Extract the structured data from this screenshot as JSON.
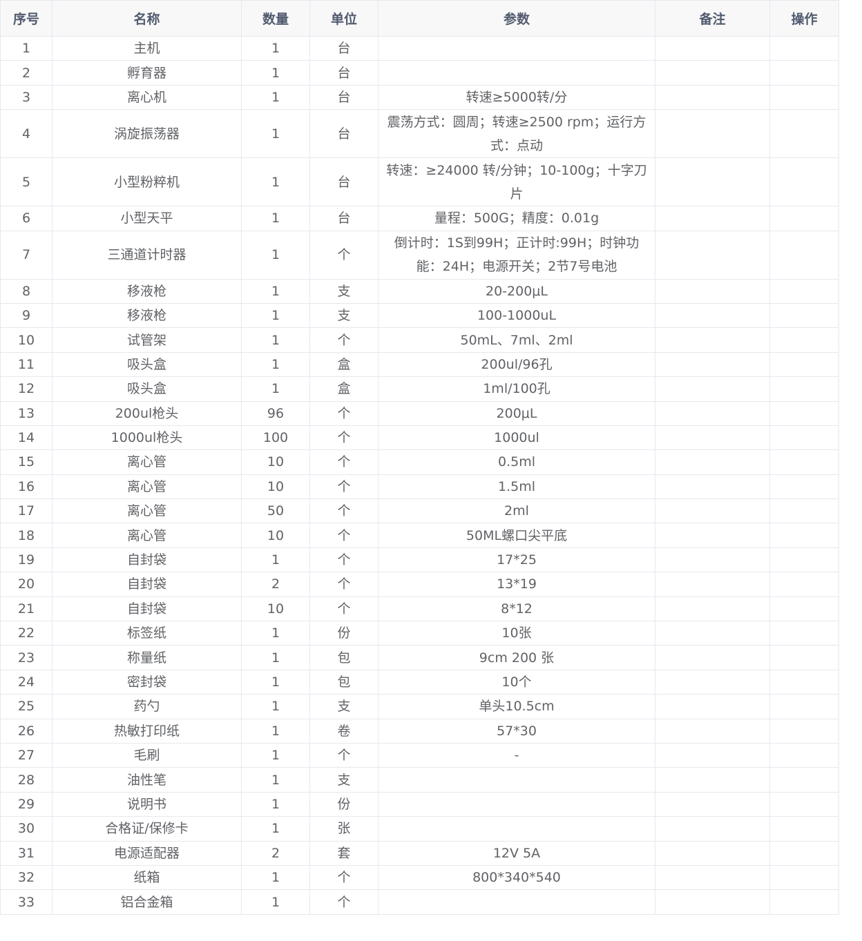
{
  "headers": [
    "序号",
    "名称",
    "数量",
    "单位",
    "参数",
    "备注",
    "操作"
  ],
  "rows": [
    [
      "1",
      "主机",
      "1",
      "台",
      "",
      "",
      ""
    ],
    [
      "2",
      "孵育器",
      "1",
      "台",
      "",
      "",
      ""
    ],
    [
      "3",
      "离心机",
      "1",
      "台",
      "转速≥5000转/分",
      "",
      ""
    ],
    [
      "4",
      "涡旋振荡器",
      "1",
      "台",
      "震荡方式：圆周；转速≥2500 rpm；运行方式：点动",
      "",
      ""
    ],
    [
      "5",
      "小型粉粹机",
      "1",
      "台",
      "转速：≥24000 转/分钟；10-100g；十字刀片",
      "",
      ""
    ],
    [
      "6",
      "小型天平",
      "1",
      "台",
      "量程：500G；精度：0.01g",
      "",
      ""
    ],
    [
      "7",
      "三通道计时器",
      "1",
      "个",
      "倒计时：1S到99H；正计时:99H；时钟功能：24H；电源开关；2节7号电池",
      "",
      ""
    ],
    [
      "8",
      "移液枪",
      "1",
      "支",
      "20-200μL",
      "",
      ""
    ],
    [
      "9",
      "移液枪",
      "1",
      "支",
      "100-1000uL",
      "",
      ""
    ],
    [
      "10",
      "试管架",
      "1",
      "个",
      "50mL、7ml、2ml",
      "",
      ""
    ],
    [
      "11",
      "吸头盒",
      "1",
      "盒",
      "200ul/96孔",
      "",
      ""
    ],
    [
      "12",
      "吸头盒",
      "1",
      "盒",
      "1ml/100孔",
      "",
      ""
    ],
    [
      "13",
      "200ul枪头",
      "96",
      "个",
      "200μL",
      "",
      ""
    ],
    [
      "14",
      "1000ul枪头",
      "100",
      "个",
      "1000ul",
      "",
      ""
    ],
    [
      "15",
      "离心管",
      "10",
      "个",
      "0.5ml",
      "",
      ""
    ],
    [
      "16",
      "离心管",
      "10",
      "个",
      "1.5ml",
      "",
      ""
    ],
    [
      "17",
      "离心管",
      "50",
      "个",
      "2ml",
      "",
      ""
    ],
    [
      "18",
      "离心管",
      "10",
      "个",
      "50ML螺口尖平底",
      "",
      ""
    ],
    [
      "19",
      "自封袋",
      "1",
      "个",
      "17*25",
      "",
      ""
    ],
    [
      "20",
      "自封袋",
      "2",
      "个",
      "13*19",
      "",
      ""
    ],
    [
      "21",
      "自封袋",
      "10",
      "个",
      "8*12",
      "",
      ""
    ],
    [
      "22",
      "标签纸",
      "1",
      "份",
      "10张",
      "",
      ""
    ],
    [
      "23",
      "称量纸",
      "1",
      "包",
      "9cm 200 张",
      "",
      ""
    ],
    [
      "24",
      "密封袋",
      "1",
      "包",
      "10个",
      "",
      ""
    ],
    [
      "25",
      "药勺",
      "1",
      "支",
      "单头10.5cm",
      "",
      ""
    ],
    [
      "26",
      "热敏打印纸",
      "1",
      "卷",
      "57*30",
      "",
      ""
    ],
    [
      "27",
      "毛刷",
      "1",
      "个",
      "-",
      "",
      ""
    ],
    [
      "28",
      "油性笔",
      "1",
      "支",
      "",
      "",
      ""
    ],
    [
      "29",
      "说明书",
      "1",
      "份",
      "",
      "",
      ""
    ],
    [
      "30",
      "合格证/保修卡",
      "1",
      "张",
      "",
      "",
      ""
    ],
    [
      "31",
      "电源适配器",
      "2",
      "套",
      "12V 5A",
      "",
      ""
    ],
    [
      "32",
      "纸箱",
      "1",
      "个",
      "800*340*540",
      "",
      ""
    ],
    [
      "33",
      "铝合金箱",
      "1",
      "个",
      "",
      "",
      ""
    ]
  ]
}
